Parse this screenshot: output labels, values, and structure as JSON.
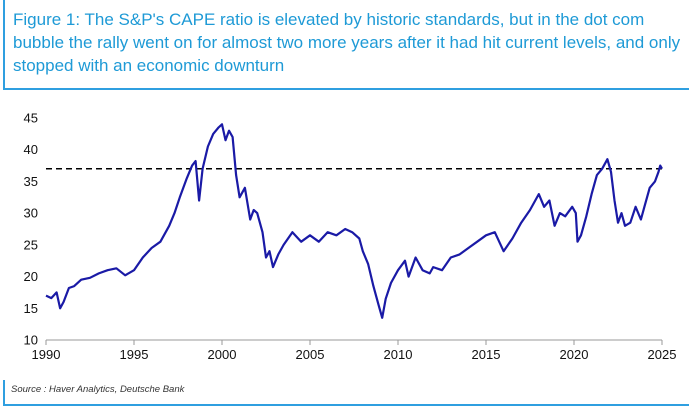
{
  "figure": {
    "title": "Figure 1: The S&P's CAPE ratio is elevated by historic standards, but in the dot com bubble the rally went on for almost two more years after it had hit current levels, and only stopped with an economic downturn",
    "source": "Source : Haver Analytics, Deutsche Bank"
  },
  "colors": {
    "accent": "#1e9ad6",
    "series": "#1a1aa6",
    "reference": "#000000"
  },
  "chart_data": {
    "type": "line",
    "title": "",
    "xlabel": "",
    "ylabel": "",
    "xlim": [
      1990,
      2025
    ],
    "ylim": [
      10,
      45
    ],
    "xticks": [
      1990,
      1995,
      2000,
      2005,
      2010,
      2015,
      2020,
      2025
    ],
    "yticks": [
      10,
      15,
      20,
      25,
      30,
      35,
      40,
      45
    ],
    "reference_line": {
      "y": 37,
      "style": "dashed"
    },
    "series": [
      {
        "name": "S&P 500 CAPE ratio",
        "x": [
          1990.0,
          1990.3,
          1990.6,
          1990.8,
          1991.0,
          1991.3,
          1991.6,
          1992.0,
          1992.5,
          1993.0,
          1993.5,
          1994.0,
          1994.5,
          1995.0,
          1995.5,
          1996.0,
          1996.5,
          1997.0,
          1997.3,
          1997.6,
          1998.0,
          1998.3,
          1998.5,
          1998.7,
          1998.9,
          1999.2,
          1999.5,
          1999.8,
          2000.0,
          2000.2,
          2000.4,
          2000.6,
          2000.8,
          2001.0,
          2001.3,
          2001.6,
          2001.8,
          2002.0,
          2002.3,
          2002.5,
          2002.7,
          2002.9,
          2003.2,
          2003.5,
          2004.0,
          2004.5,
          2005.0,
          2005.5,
          2006.0,
          2006.5,
          2007.0,
          2007.4,
          2007.8,
          2008.0,
          2008.3,
          2008.6,
          2008.9,
          2009.1,
          2009.3,
          2009.6,
          2010.0,
          2010.4,
          2010.6,
          2011.0,
          2011.4,
          2011.8,
          2012.0,
          2012.5,
          2013.0,
          2013.5,
          2014.0,
          2014.5,
          2015.0,
          2015.5,
          2016.0,
          2016.5,
          2017.0,
          2017.5,
          2018.0,
          2018.3,
          2018.6,
          2018.9,
          2019.2,
          2019.5,
          2019.9,
          2020.1,
          2020.2,
          2020.4,
          2020.7,
          2021.0,
          2021.3,
          2021.6,
          2021.9,
          2022.1,
          2022.3,
          2022.5,
          2022.7,
          2022.9,
          2023.2,
          2023.5,
          2023.8,
          2024.0,
          2024.3,
          2024.6,
          2024.8,
          2024.9,
          2025.0
        ],
        "values": [
          17.0,
          16.6,
          17.5,
          15.0,
          16.0,
          18.2,
          18.5,
          19.5,
          19.8,
          20.5,
          21.0,
          21.3,
          20.2,
          21.0,
          23.0,
          24.5,
          25.5,
          28.0,
          30.0,
          32.5,
          35.5,
          37.5,
          38.2,
          32.0,
          37.0,
          40.5,
          42.5,
          43.5,
          44.0,
          41.5,
          43.0,
          42.0,
          36.0,
          32.5,
          34.0,
          29.0,
          30.5,
          30.0,
          27.0,
          23.0,
          24.0,
          21.5,
          23.5,
          25.0,
          27.0,
          25.5,
          26.5,
          25.5,
          27.0,
          26.5,
          27.5,
          27.0,
          26.0,
          24.0,
          22.0,
          18.5,
          15.5,
          13.5,
          16.5,
          19.0,
          21.0,
          22.5,
          20.0,
          23.0,
          21.0,
          20.5,
          21.5,
          21.0,
          23.0,
          23.5,
          24.5,
          25.5,
          26.5,
          27.0,
          24.0,
          26.0,
          28.5,
          30.5,
          33.0,
          31.0,
          32.0,
          28.0,
          30.0,
          29.5,
          31.0,
          30.0,
          25.5,
          26.5,
          29.5,
          33.0,
          36.0,
          37.0,
          38.5,
          36.5,
          32.0,
          28.5,
          30.0,
          28.0,
          28.5,
          31.0,
          29.0,
          31.0,
          34.0,
          35.0,
          36.5,
          37.5,
          37.0
        ]
      }
    ]
  }
}
